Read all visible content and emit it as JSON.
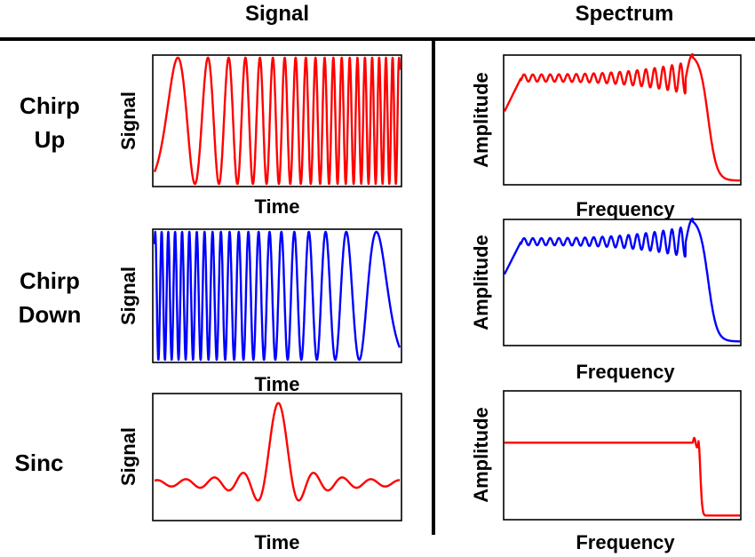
{
  "column_titles": {
    "signal": "Signal",
    "spectrum": "Spectrum"
  },
  "rows": [
    {
      "id": "chirp-up",
      "label_lines": [
        "Chirp",
        "Up"
      ],
      "signal": {
        "xlabel": "Time",
        "ylabel": "Signal",
        "color": "#ff0000",
        "waveform": "chirp-up"
      },
      "spectrum": {
        "xlabel": "Frequency",
        "ylabel": "Amplitude",
        "color": "#ff0000",
        "shape": "chirp"
      }
    },
    {
      "id": "chirp-down",
      "label_lines": [
        "Chirp",
        "Down"
      ],
      "signal": {
        "xlabel": "Time",
        "ylabel": "Signal",
        "color": "#0000ff",
        "waveform": "chirp-down"
      },
      "spectrum": {
        "xlabel": "Frequency",
        "ylabel": "Amplitude",
        "color": "#0000ff",
        "shape": "chirp"
      }
    },
    {
      "id": "sinc",
      "label_lines": [
        "Sinc"
      ],
      "signal": {
        "xlabel": "Time",
        "ylabel": "Signal",
        "color": "#ff0000",
        "waveform": "sinc"
      },
      "spectrum": {
        "xlabel": "Frequency",
        "ylabel": "Amplitude",
        "color": "#ff0000",
        "shape": "flat"
      }
    }
  ]
}
